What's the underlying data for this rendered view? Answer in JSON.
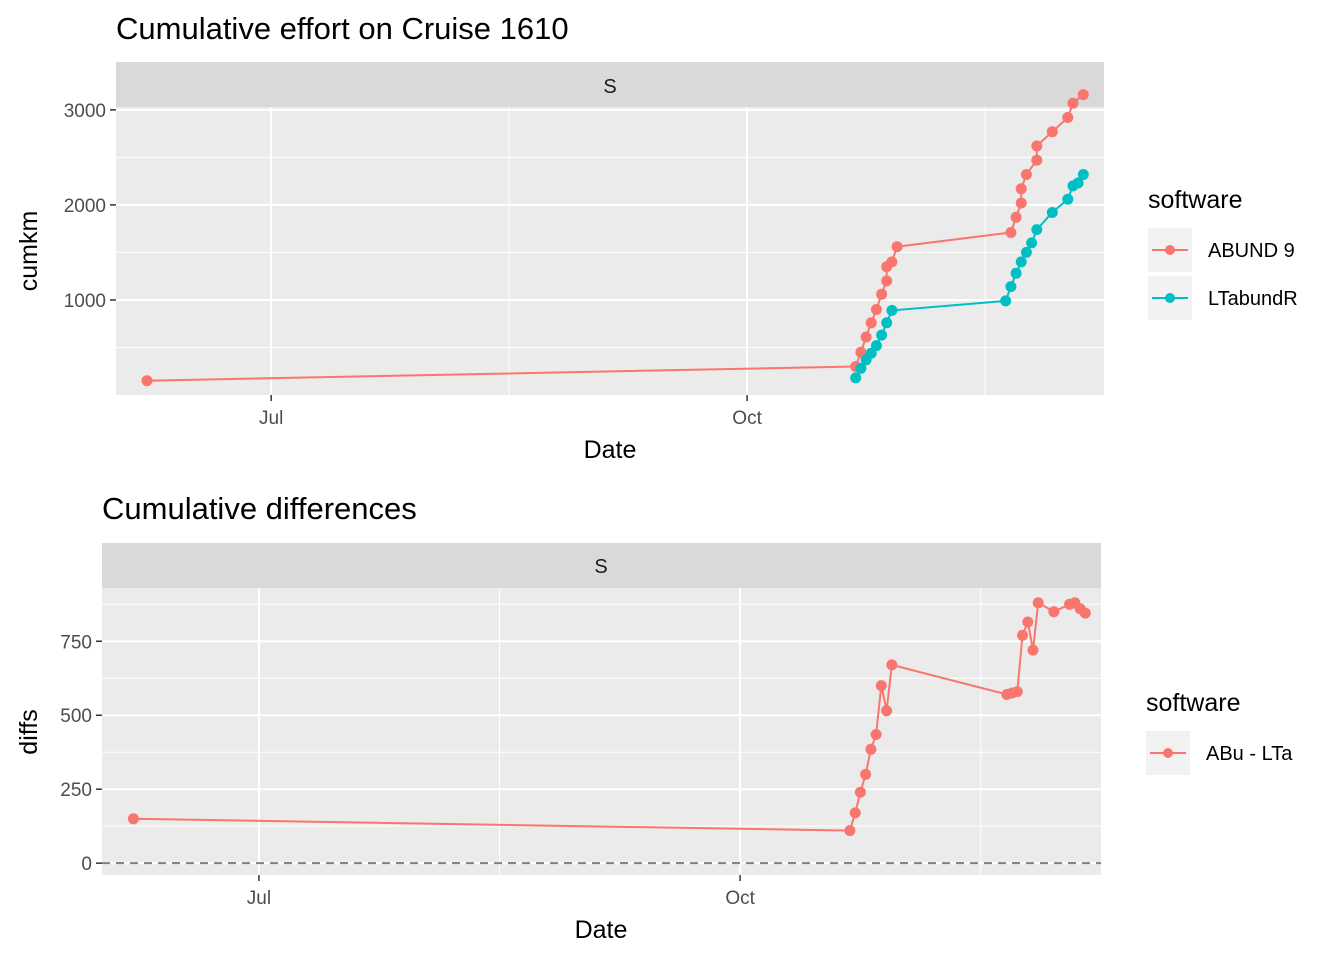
{
  "chart_data": [
    {
      "type": "line",
      "title": "Cumulative effort on Cruise 1610",
      "facet_label": "S",
      "xlabel": "Date",
      "ylabel": "cumkm",
      "x_ticks": [
        "Jul",
        "Oct"
      ],
      "y_ticks": [
        1000,
        2000,
        3000
      ],
      "ylim": [
        0,
        3030
      ],
      "legend_title": "software",
      "legend_position": "right",
      "series": [
        {
          "name": "ABUND 9",
          "color": "#F8766D",
          "points": [
            {
              "date": "2016-06-07",
              "y": 150
            },
            {
              "date": "2016-10-22",
              "y": 300
            },
            {
              "date": "2016-10-23",
              "y": 450
            },
            {
              "date": "2016-10-24",
              "y": 610
            },
            {
              "date": "2016-10-25",
              "y": 760
            },
            {
              "date": "2016-10-26",
              "y": 900
            },
            {
              "date": "2016-10-27",
              "y": 1060
            },
            {
              "date": "2016-10-28",
              "y": 1200
            },
            {
              "date": "2016-10-28",
              "y": 1350
            },
            {
              "date": "2016-10-29",
              "y": 1400
            },
            {
              "date": "2016-10-30",
              "y": 1560
            },
            {
              "date": "2016-11-21",
              "y": 1710
            },
            {
              "date": "2016-11-22",
              "y": 1870
            },
            {
              "date": "2016-11-23",
              "y": 2020
            },
            {
              "date": "2016-11-23",
              "y": 2170
            },
            {
              "date": "2016-11-24",
              "y": 2320
            },
            {
              "date": "2016-11-26",
              "y": 2470
            },
            {
              "date": "2016-11-26",
              "y": 2620
            },
            {
              "date": "2016-11-29",
              "y": 2770
            },
            {
              "date": "2016-12-02",
              "y": 2920
            },
            {
              "date": "2016-12-03",
              "y": 3070
            },
            {
              "date": "2016-12-05",
              "y": 3160
            }
          ]
        },
        {
          "name": "LTabundR",
          "color": "#00BFC4",
          "points": [
            {
              "date": "2016-10-22",
              "y": 180
            },
            {
              "date": "2016-10-23",
              "y": 280
            },
            {
              "date": "2016-10-24",
              "y": 370
            },
            {
              "date": "2016-10-25",
              "y": 440
            },
            {
              "date": "2016-10-26",
              "y": 520
            },
            {
              "date": "2016-10-27",
              "y": 630
            },
            {
              "date": "2016-10-28",
              "y": 760
            },
            {
              "date": "2016-10-29",
              "y": 890
            },
            {
              "date": "2016-11-20",
              "y": 990
            },
            {
              "date": "2016-11-21",
              "y": 1140
            },
            {
              "date": "2016-11-22",
              "y": 1280
            },
            {
              "date": "2016-11-23",
              "y": 1400
            },
            {
              "date": "2016-11-24",
              "y": 1500
            },
            {
              "date": "2016-11-25",
              "y": 1600
            },
            {
              "date": "2016-11-26",
              "y": 1740
            },
            {
              "date": "2016-11-29",
              "y": 1920
            },
            {
              "date": "2016-12-02",
              "y": 2060
            },
            {
              "date": "2016-12-03",
              "y": 2200
            },
            {
              "date": "2016-12-04",
              "y": 2230
            },
            {
              "date": "2016-12-05",
              "y": 2320
            }
          ]
        }
      ]
    },
    {
      "type": "line",
      "title": "Cumulative differences",
      "facet_label": "S",
      "xlabel": "Date",
      "ylabel": "diffs",
      "x_ticks": [
        "Jul",
        "Oct"
      ],
      "y_ticks": [
        0,
        250,
        500,
        750
      ],
      "ylim": [
        -40,
        930
      ],
      "reference_line": {
        "y": 0,
        "style": "dashed",
        "color": "#808080"
      },
      "legend_title": "software",
      "legend_position": "right",
      "series": [
        {
          "name": "ABu - LTa",
          "color": "#F8766D",
          "points": [
            {
              "date": "2016-06-07",
              "y": 150
            },
            {
              "date": "2016-10-22",
              "y": 110
            },
            {
              "date": "2016-10-23",
              "y": 170
            },
            {
              "date": "2016-10-24",
              "y": 240
            },
            {
              "date": "2016-10-25",
              "y": 300
            },
            {
              "date": "2016-10-26",
              "y": 385
            },
            {
              "date": "2016-10-27",
              "y": 435
            },
            {
              "date": "2016-10-28",
              "y": 600
            },
            {
              "date": "2016-10-29",
              "y": 515
            },
            {
              "date": "2016-10-30",
              "y": 670
            },
            {
              "date": "2016-11-21",
              "y": 570
            },
            {
              "date": "2016-11-22",
              "y": 575
            },
            {
              "date": "2016-11-23",
              "y": 580
            },
            {
              "date": "2016-11-24",
              "y": 770
            },
            {
              "date": "2016-11-25",
              "y": 815
            },
            {
              "date": "2016-11-26",
              "y": 720
            },
            {
              "date": "2016-11-27",
              "y": 880
            },
            {
              "date": "2016-11-30",
              "y": 850
            },
            {
              "date": "2016-12-03",
              "y": 875
            },
            {
              "date": "2016-12-04",
              "y": 880
            },
            {
              "date": "2016-12-05",
              "y": 860
            },
            {
              "date": "2016-12-06",
              "y": 845
            }
          ]
        }
      ]
    }
  ]
}
